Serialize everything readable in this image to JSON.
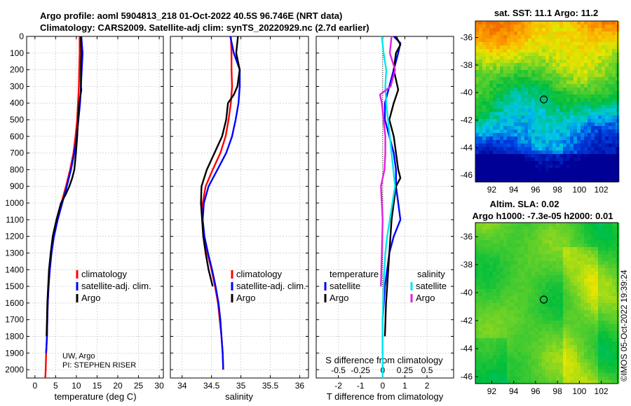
{
  "header": {
    "title_line1": "Argo profile: aoml 5904813_218 01-Oct-2022 40.5S 96.746E (NRT data)",
    "title_line2": "Climatology: CARS2009. Satellite-adj clim: synTS_20220929.nc (2.7d earlier)"
  },
  "credit": {
    "line1": "UW, Argo",
    "line2": "PI: STEPHEN RISER"
  },
  "imos_stamp": "©IMOS 05-Oct-2022 19:39:24",
  "colors": {
    "climatology": "#ff0000",
    "satellite": "#0000ff",
    "argo": "#000000",
    "sat_salinity": "#00e5ee",
    "argo_salinity": "#e020e0"
  },
  "chart_data": [
    {
      "type": "line",
      "name": "temperature",
      "xlabel": "temperature (deg C)",
      "ylabel": "",
      "xlim": [
        -2,
        31
      ],
      "ylim": [
        0,
        2050
      ],
      "y_reversed": true,
      "xticks": [
        0,
        5,
        10,
        15,
        20,
        25,
        30
      ],
      "yticks": [
        0,
        100,
        200,
        300,
        400,
        500,
        600,
        700,
        800,
        900,
        1000,
        1100,
        1200,
        1300,
        1400,
        1500,
        1600,
        1700,
        1800,
        1900,
        2000
      ],
      "grid": true,
      "legend": [
        "climatology",
        "satellite-adj. clim.",
        "Argo"
      ],
      "series": [
        {
          "name": "climatology",
          "color": "#ff0000",
          "x": [
            10.8,
            10.8,
            10.7,
            10.6,
            10.4,
            10.2,
            9.8,
            9.3,
            8.5,
            7.5,
            6.4,
            5.3,
            4.4,
            3.9,
            3.5,
            3.3,
            3.1,
            3.0,
            2.9,
            2.7,
            2.6,
            2.5
          ],
          "y": [
            0,
            100,
            200,
            300,
            400,
            500,
            600,
            700,
            800,
            900,
            1000,
            1100,
            1200,
            1300,
            1400,
            1500,
            1600,
            1700,
            1800,
            1900,
            2000,
            2050
          ]
        },
        {
          "name": "satellite-adj. clim.",
          "color": "#0000ff",
          "x": [
            11.2,
            11.5,
            11.3,
            11.1,
            10.9,
            10.5,
            10.1,
            9.5,
            8.7,
            7.7,
            6.6,
            5.5,
            4.6,
            4.0,
            3.6,
            3.3,
            3.1,
            3.0,
            2.9,
            2.7
          ],
          "y": [
            0,
            100,
            200,
            300,
            400,
            500,
            600,
            700,
            800,
            900,
            1000,
            1100,
            1200,
            1300,
            1400,
            1500,
            1600,
            1700,
            1800,
            1900
          ]
        },
        {
          "name": "Argo",
          "color": "#000000",
          "x": [
            11.1,
            11.2,
            11.1,
            11.1,
            11.2,
            10.7,
            10.4,
            10.2,
            9.9,
            9.5,
            9.0,
            8.3,
            7.4,
            6.3,
            5.2,
            4.3,
            3.8,
            3.4,
            3.2,
            3.0,
            2.9,
            2.8
          ],
          "y": [
            0,
            100,
            200,
            300,
            320,
            400,
            500,
            600,
            700,
            800,
            850,
            900,
            950,
            1000,
            1100,
            1200,
            1300,
            1400,
            1500,
            1600,
            1700,
            1800
          ]
        }
      ]
    },
    {
      "type": "line",
      "name": "salinity",
      "xlabel": "salinity",
      "ylabel": "",
      "xlim": [
        33.8,
        36.15
      ],
      "ylim": [
        0,
        2050
      ],
      "y_reversed": true,
      "xticks": [
        34,
        34.5,
        35,
        35.5,
        36
      ],
      "grid": true,
      "legend": [
        "climatology",
        "satellite-adj. clim.",
        "Argo"
      ],
      "series": [
        {
          "name": "climatology",
          "color": "#ff0000",
          "x": [
            34.83,
            34.84,
            34.84,
            34.85,
            34.83,
            34.79,
            34.74,
            34.65,
            34.52,
            34.4,
            34.35,
            34.34,
            34.37,
            34.43,
            34.5,
            34.56,
            34.61,
            34.64,
            34.67,
            34.69,
            34.7
          ],
          "y": [
            0,
            100,
            200,
            300,
            400,
            500,
            600,
            700,
            800,
            900,
            1000,
            1100,
            1200,
            1300,
            1400,
            1500,
            1600,
            1700,
            1800,
            1900,
            2000
          ]
        },
        {
          "name": "satellite-adj. clim.",
          "color": "#0000ff",
          "x": [
            34.82,
            34.88,
            34.98,
            34.98,
            34.96,
            34.91,
            34.85,
            34.75,
            34.6,
            34.45,
            34.37,
            34.35,
            34.38,
            34.44,
            34.51,
            34.57,
            34.62,
            34.65,
            34.67,
            34.69,
            34.7
          ],
          "y": [
            0,
            100,
            200,
            300,
            400,
            500,
            600,
            700,
            800,
            900,
            1000,
            1100,
            1200,
            1300,
            1400,
            1500,
            1600,
            1700,
            1800,
            1900,
            2000
          ]
        },
        {
          "name": "Argo",
          "color": "#000000",
          "x": [
            34.95,
            34.92,
            34.98,
            34.94,
            34.88,
            34.78,
            34.75,
            34.68,
            34.55,
            34.42,
            34.33,
            34.32,
            34.34,
            34.36,
            34.4,
            34.45,
            34.52
          ],
          "y": [
            0,
            100,
            200,
            300,
            350,
            400,
            500,
            600,
            700,
            800,
            900,
            1000,
            1100,
            1200,
            1300,
            1400,
            1500
          ]
        }
      ]
    },
    {
      "type": "line",
      "name": "difference",
      "xlabel": "T difference from climatology",
      "xlabel2": "S difference from climatology",
      "xlim": [
        -3,
        3.2
      ],
      "ylim": [
        0,
        2050
      ],
      "y_reversed": true,
      "xticks_T": [
        -2,
        -1,
        0,
        1,
        2
      ],
      "xticks_S": [
        -0.5,
        -0.25,
        0,
        0.25,
        0.5
      ],
      "s_scale": 4,
      "grid": true,
      "legend_T_title": "temperature",
      "legend_S_title": "salinity",
      "legend_T": [
        "satellite",
        "Argo"
      ],
      "legend_S": [
        "satellite",
        "Argo"
      ],
      "series": [
        {
          "name": "T satellite",
          "color": "#0000ff",
          "x": [
            0.5,
            0.8,
            0.7,
            0.5,
            0.3,
            0.1,
            0.1,
            0.3,
            0.5,
            0.6,
            0.6,
            0.7,
            0.8,
            0.5,
            0.3,
            0.2,
            0.1,
            0.05,
            0.0,
            0.0
          ],
          "y": [
            0,
            40,
            100,
            200,
            300,
            400,
            500,
            600,
            700,
            800,
            900,
            1000,
            1100,
            1200,
            1300,
            1400,
            1500,
            1600,
            1700,
            1900
          ]
        },
        {
          "name": "T Argo",
          "color": "#000000",
          "x": [
            0.6,
            0.8,
            0.6,
            0.5,
            0.7,
            0.5,
            0.3,
            0.5,
            0.6,
            0.7,
            0.8,
            0.6,
            0.5,
            0.4,
            0.3,
            0.2,
            0.15,
            0.1
          ],
          "y": [
            0,
            50,
            100,
            200,
            320,
            400,
            500,
            600,
            700,
            800,
            850,
            900,
            1000,
            1100,
            1300,
            1500,
            1600,
            1800
          ]
        },
        {
          "name": "S satellite",
          "color": "#00e5ee",
          "x": [
            -0.01,
            0.01,
            0.04,
            0.03,
            0.04,
            0.06,
            0.08,
            0.1,
            0.12,
            0.14,
            0.11,
            0.08,
            0.05,
            0.03,
            0.01,
            0.0,
            0.0,
            0.0
          ],
          "y": [
            0,
            100,
            200,
            300,
            400,
            500,
            600,
            700,
            800,
            900,
            1000,
            1100,
            1200,
            1300,
            1500,
            1700,
            1900,
            2050
          ]
        },
        {
          "name": "S Argo",
          "color": "#e020e0",
          "x": [
            0.1,
            0.08,
            0.14,
            0.09,
            -0.03,
            -0.01,
            0.01,
            0.03,
            0.03,
            0.02,
            -0.02,
            -0.01,
            0.0,
            -0.01,
            -0.02
          ],
          "y": [
            0,
            100,
            200,
            300,
            350,
            400,
            500,
            600,
            700,
            800,
            900,
            1000,
            1100,
            1300,
            1500
          ]
        }
      ]
    },
    {
      "type": "heatmap",
      "name": "sst_map",
      "title": "sat. SST: 11.1  Argo: 11.2",
      "xticks": [
        92,
        94,
        96,
        98,
        100,
        102
      ],
      "yticks": [
        -36,
        -38,
        -40,
        -42,
        -44,
        -46
      ],
      "xlim": [
        90.5,
        103.5
      ],
      "ylim": [
        -46.5,
        -34.8
      ],
      "marker": {
        "lon": 96.75,
        "lat": -40.5
      }
    },
    {
      "type": "heatmap",
      "name": "sla_map",
      "title": "Altim. SLA: 0.02",
      "title2": "Argo h1000: -7.3e-05  h2000: 0.01",
      "xticks": [
        92,
        94,
        96,
        98,
        100,
        102
      ],
      "yticks": [
        -36,
        -38,
        -40,
        -42,
        -44,
        -46
      ],
      "xlim": [
        90.5,
        103.5
      ],
      "ylim": [
        -46.5,
        -35
      ],
      "marker": {
        "lon": 96.75,
        "lat": -40.5
      }
    }
  ]
}
